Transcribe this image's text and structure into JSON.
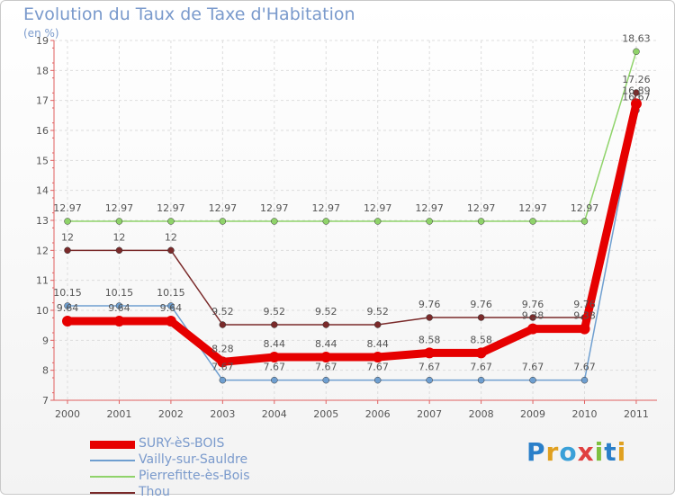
{
  "title": "Evolution du Taux de Taxe d'Habitation",
  "subtitle": "(en %)",
  "logo": "Proxiti",
  "chart_data": {
    "type": "line",
    "title": "Evolution du Taux de Taxe d'Habitation",
    "ylabel": "(en %)",
    "categories": [
      "2000",
      "2001",
      "2002",
      "2003",
      "2004",
      "2005",
      "2006",
      "2007",
      "2008",
      "2009",
      "2010",
      "2011"
    ],
    "ylim": [
      7,
      19
    ],
    "yticks": [
      7,
      8,
      9,
      10,
      11,
      12,
      13,
      14,
      15,
      16,
      17,
      18,
      19
    ],
    "grid": true,
    "legend": "bottom-left",
    "series": [
      {
        "name": "SURY-èS-BOIS",
        "color": "#e60000",
        "values": [
          9.64,
          9.64,
          9.64,
          8.28,
          8.44,
          8.44,
          8.44,
          8.58,
          8.58,
          9.38,
          9.38,
          16.89
        ],
        "labels": [
          "9.64",
          "9.64",
          "9.64",
          "8.28",
          "8.44",
          "8.44",
          "8.44",
          "8.58",
          "8.58",
          "9.38",
          "9.38",
          "16.89"
        ]
      },
      {
        "name": "Vailly-sur-Sauldre",
        "color": "#6f9fd0",
        "values": [
          10.15,
          10.15,
          10.15,
          7.67,
          7.67,
          7.67,
          7.67,
          7.67,
          7.67,
          7.67,
          7.67,
          16.67
        ],
        "labels": [
          "10.15",
          "10.15",
          "10.15",
          "7.67",
          "7.67",
          "7.67",
          "7.67",
          "7.67",
          "7.67",
          "7.67",
          "7.67",
          "16.67"
        ]
      },
      {
        "name": "Pierrefitte-ès-Bois",
        "color": "#8fd36a",
        "values": [
          12.97,
          12.97,
          12.97,
          12.97,
          12.97,
          12.97,
          12.97,
          12.97,
          12.97,
          12.97,
          12.97,
          18.63
        ],
        "labels": [
          "12.97",
          "12.97",
          "12.97",
          "12.97",
          "12.97",
          "12.97",
          "12.97",
          "12.97",
          "12.97",
          "12.97",
          "12.97",
          "18.63"
        ]
      },
      {
        "name": "Thou",
        "color": "#7a2a2a",
        "values": [
          12,
          12,
          12,
          9.52,
          9.52,
          9.52,
          9.52,
          9.76,
          9.76,
          9.76,
          9.76,
          17.26
        ],
        "labels": [
          "12",
          "12",
          "12",
          "9.52",
          "9.52",
          "9.52",
          "9.52",
          "9.76",
          "9.76",
          "9.76",
          "9.76",
          "17.26"
        ]
      }
    ]
  }
}
